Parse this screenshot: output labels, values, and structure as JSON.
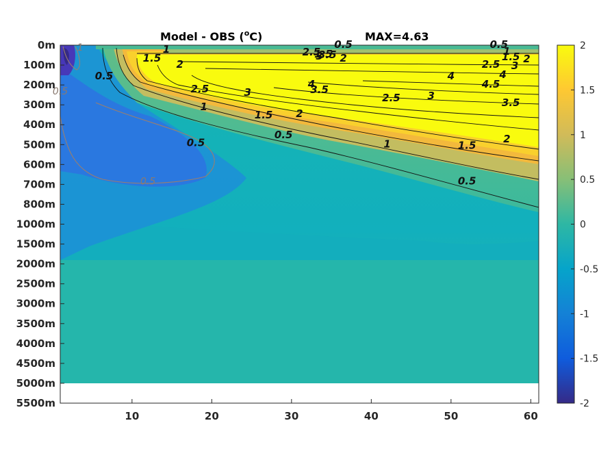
{
  "chart_data": {
    "type": "heatmap",
    "title": "Model - OBS (",
    "title_unit_sup": "o",
    "title_unit": "C)",
    "max_label": "MAX=4.63",
    "x_ticks": [
      "10",
      "20",
      "30",
      "40",
      "50",
      "60"
    ],
    "x_tick_values": [
      10,
      20,
      30,
      40,
      50,
      60
    ],
    "xlim": [
      1,
      61
    ],
    "y_ticks": [
      "0m",
      "100m",
      "200m",
      "300m",
      "400m",
      "500m",
      "600m",
      "700m",
      "800m",
      "1000m",
      "1500m",
      "2000m",
      "2500m",
      "3000m",
      "3500m",
      "4000m",
      "4500m",
      "5000m",
      "5500m"
    ],
    "colorbar": {
      "ticks": [
        "2",
        "1.5",
        "1",
        "0.5",
        "0",
        "-0.5",
        "-1",
        "-1.5",
        "-2"
      ],
      "tick_values": [
        2,
        1.5,
        1,
        0.5,
        0,
        -0.5,
        -1,
        -1.5,
        -2
      ],
      "clim": [
        -2,
        2
      ],
      "colormap": "parula",
      "colors": [
        "#352a87",
        "#0f5cdd",
        "#1481d6",
        "#06a4ca",
        "#2eb7a4",
        "#87bf77",
        "#d1bb59",
        "#fec832",
        "#f9fb0e"
      ]
    },
    "positive_contour_levels": [
      0.5,
      1,
      1.5,
      2,
      2.5,
      3,
      3.5,
      4,
      4.5
    ],
    "negative_contour_levels": [
      -0.5,
      -1
    ],
    "contour_labels": [
      {
        "text": "0.5",
        "x": 36.5,
        "depth": "0m"
      },
      {
        "text": "1",
        "x": 14.3,
        "depth": "0m"
      },
      {
        "text": "1.5",
        "x": 12.5,
        "depth": "100m"
      },
      {
        "text": "2",
        "x": 16,
        "depth": "100m"
      },
      {
        "text": "0.5",
        "x": 6.5,
        "depth": "200m"
      },
      {
        "text": "2.5",
        "x": 18.5,
        "depth": "200m"
      },
      {
        "text": "3",
        "x": 24.5,
        "depth": "200m"
      },
      {
        "text": "1",
        "x": 19,
        "depth": "300m"
      },
      {
        "text": "1.5",
        "x": 26.5,
        "depth": "300m"
      },
      {
        "text": "2",
        "x": 31,
        "depth": "300m"
      },
      {
        "text": "0.5",
        "x": 29,
        "depth": "400m"
      },
      {
        "text": "1.5",
        "x": 34,
        "depth": "0m"
      },
      {
        "text": "2",
        "x": 36.5,
        "depth": "0m"
      },
      {
        "text": "2.5",
        "x": 32.5,
        "depth": "100m"
      },
      {
        "text": "3",
        "x": 33.5,
        "depth": "100m"
      },
      {
        "text": "3.5",
        "x": 34.5,
        "depth": "100m"
      },
      {
        "text": "4",
        "x": 32.5,
        "depth": "200m"
      },
      {
        "text": "3.5",
        "x": 33.5,
        "depth": "200m"
      },
      {
        "text": "4",
        "x": 50,
        "depth": "200m"
      },
      {
        "text": "3",
        "x": 47.5,
        "depth": "300m"
      },
      {
        "text": "2.5",
        "x": 42.5,
        "depth": "300m"
      },
      {
        "text": "1",
        "x": 42,
        "depth": "500m"
      },
      {
        "text": "1.5",
        "x": 52,
        "depth": "500m"
      },
      {
        "text": "2",
        "x": 57,
        "depth": "400m"
      },
      {
        "text": "3.5",
        "x": 57.5,
        "depth": "300m"
      },
      {
        "text": "0.5",
        "x": 52,
        "depth": "700m"
      },
      {
        "text": "0.5",
        "x": 56,
        "depth": "0m"
      },
      {
        "text": "1",
        "x": 57,
        "depth": "0m"
      },
      {
        "text": "1.5",
        "x": 57.5,
        "depth": "0m"
      },
      {
        "text": "2",
        "x": 59.5,
        "depth": "100m"
      },
      {
        "text": "2.5",
        "x": 55,
        "depth": "100m"
      },
      {
        "text": "3",
        "x": 58,
        "depth": "100m"
      },
      {
        "text": "4.5",
        "x": 55,
        "depth": "200m"
      },
      {
        "text": "4",
        "x": 56.5,
        "depth": "200m"
      },
      {
        "text": "0.5",
        "x": 18,
        "depth": "500m"
      },
      {
        "text": "0.5",
        "x": 12,
        "depth": "700m"
      },
      {
        "text": "0.5",
        "x": 1,
        "depth": "200m"
      },
      {
        "text": "1",
        "x": 3.5,
        "depth": "0m"
      }
    ]
  }
}
